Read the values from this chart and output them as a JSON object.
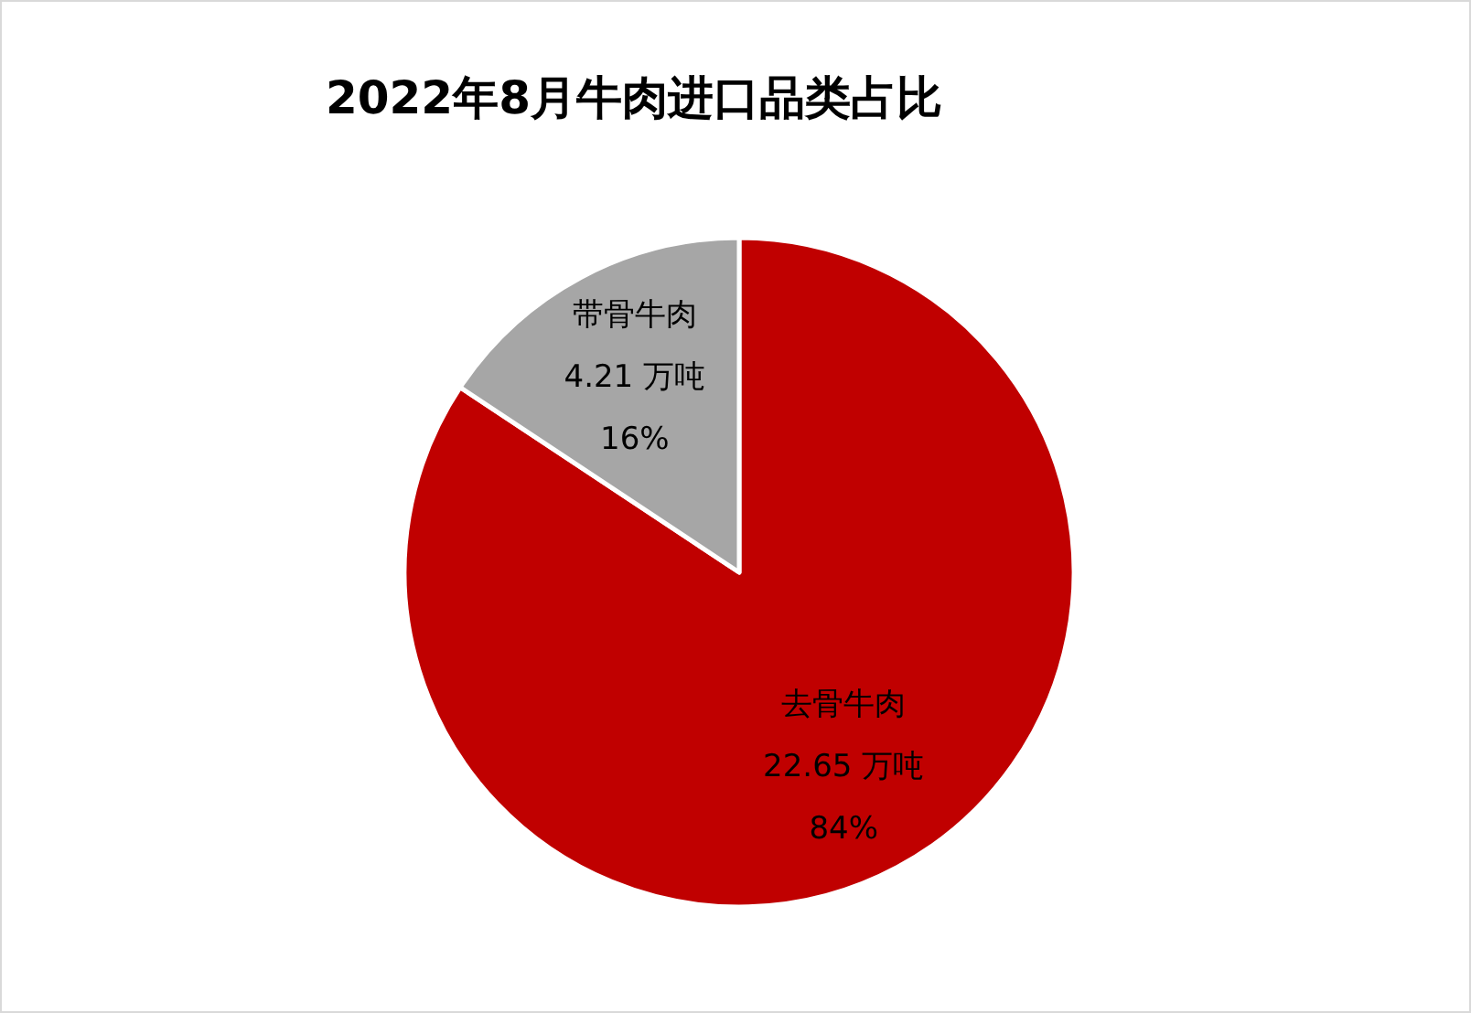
{
  "chart_data": {
    "type": "pie",
    "title": "2022年8月牛肉进口品类占比",
    "categories": [
      "去骨牛肉",
      "带骨牛肉"
    ],
    "values": [
      22.65,
      4.21
    ],
    "colors": [
      "#c00000",
      "#a6a6a6"
    ],
    "value_labels": [
      "22.65 万吨\n84%",
      "4.21 万吨\n16%"
    ],
    "legend": false
  }
}
